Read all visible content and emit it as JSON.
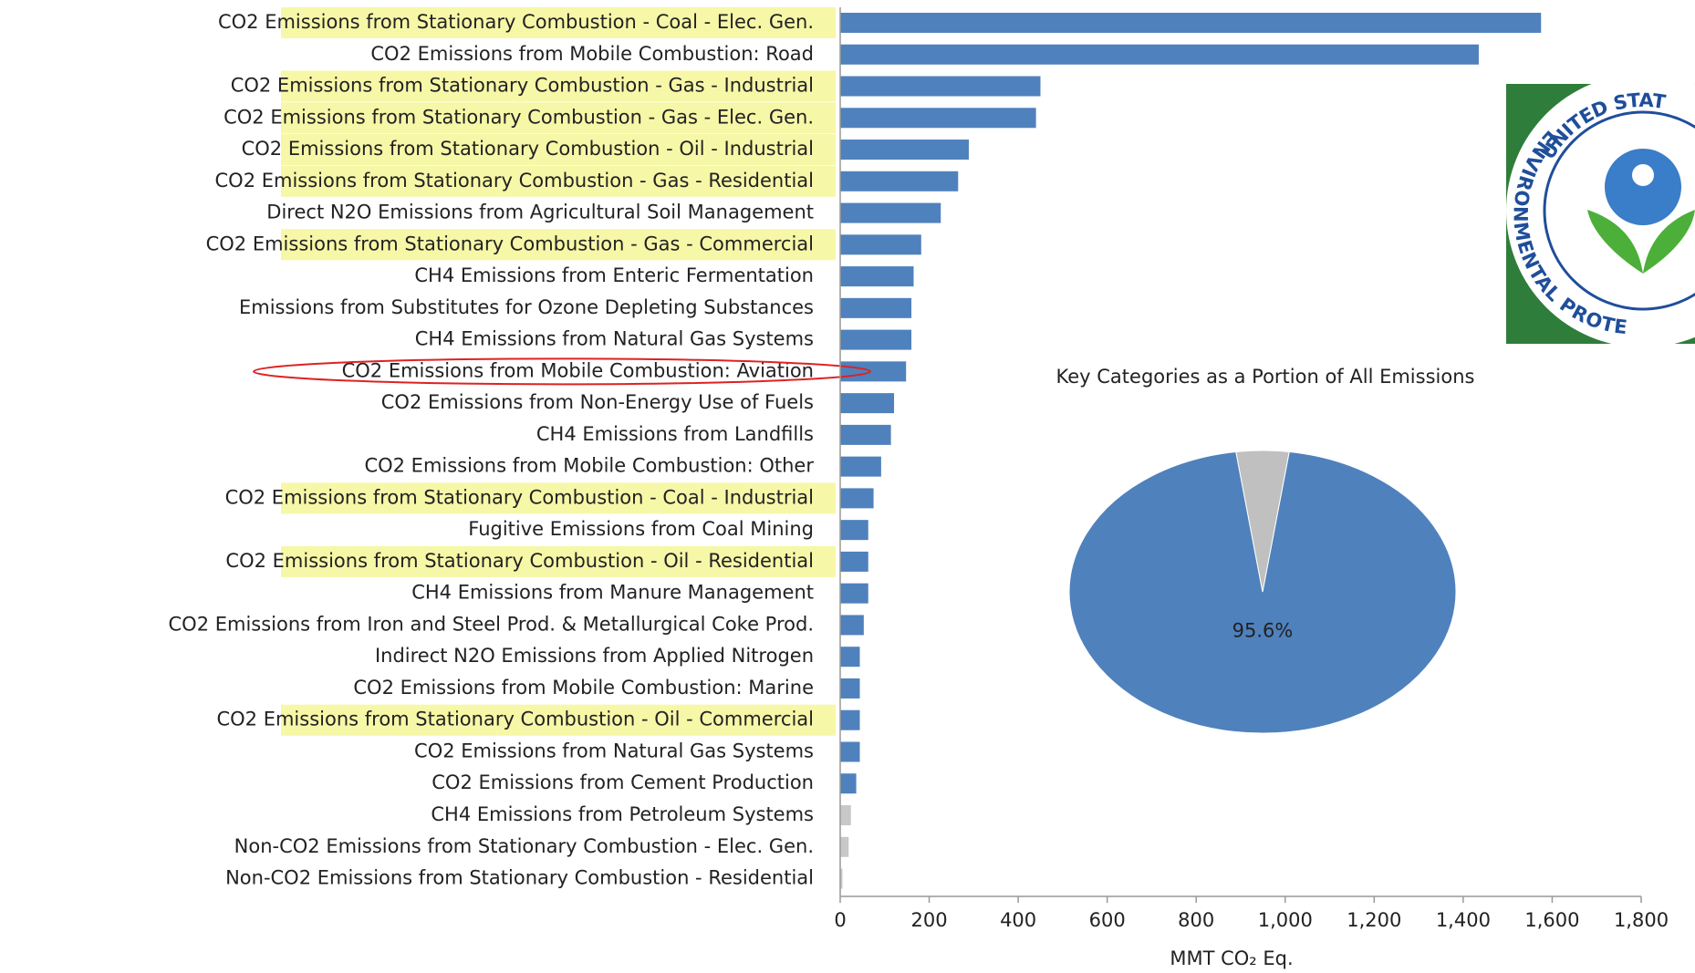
{
  "chart_data": [
    {
      "type": "bar",
      "categories": [
        "CO2 Emissions from Stationary Combustion - Coal - Elec. Gen.",
        "CO2 Emissions from Mobile Combustion: Road",
        "CO2 Emissions from Stationary Combustion - Gas - Industrial",
        "CO2 Emissions from Stationary Combustion - Gas - Elec. Gen.",
        "CO2 Emissions from Stationary Combustion - Oil - Industrial",
        "CO2 Emissions from Stationary Combustion - Gas - Residential",
        "Direct N2O Emissions from Agricultural Soil Management",
        "CO2 Emissions from Stationary Combustion - Gas - Commercial",
        "CH4 Emissions from Enteric Fermentation",
        "Emissions from Substitutes for Ozone Depleting Substances",
        "CH4 Emissions from Natural Gas Systems",
        "CO2 Emissions from Mobile Combustion: Aviation",
        "CO2 Emissions from Non-Energy Use of Fuels",
        "CH4 Emissions from Landfills",
        "CO2 Emissions from Mobile Combustion: Other",
        "CO2 Emissions from Stationary Combustion - Coal - Industrial",
        "Fugitive Emissions from Coal Mining",
        "CO2 Emissions from Stationary Combustion - Oil - Residential",
        "CH4 Emissions from Manure Management",
        "CO2 Emissions from Iron and Steel Prod. & Metallurgical Coke Prod.",
        "Indirect N2O Emissions from Applied Nitrogen",
        "CO2 Emissions from Mobile Combustion: Marine",
        "CO2 Emissions from Stationary Combustion - Oil - Commercial",
        "CO2 Emissions from Natural Gas Systems",
        "CO2 Emissions from Cement Production",
        "CH4 Emissions from Petroleum Systems",
        "Non-CO2 Emissions from Stationary Combustion - Elec. Gen.",
        "Non-CO2 Emissions from Stationary Combustion - Residential"
      ],
      "values": [
        1575,
        1435,
        450,
        440,
        289,
        265,
        226,
        182,
        165,
        160,
        160,
        148,
        121,
        114,
        92,
        75,
        63,
        63,
        63,
        53,
        44,
        44,
        44,
        44,
        36,
        24,
        19,
        5
      ],
      "colors": [
        "#4f81bd",
        "#4f81bd",
        "#4f81bd",
        "#4f81bd",
        "#4f81bd",
        "#4f81bd",
        "#4f81bd",
        "#4f81bd",
        "#4f81bd",
        "#4f81bd",
        "#4f81bd",
        "#4f81bd",
        "#4f81bd",
        "#4f81bd",
        "#4f81bd",
        "#4f81bd",
        "#4f81bd",
        "#4f81bd",
        "#4f81bd",
        "#4f81bd",
        "#4f81bd",
        "#4f81bd",
        "#4f81bd",
        "#4f81bd",
        "#4f81bd",
        "#c8c8c8",
        "#c8c8c8",
        "#c8c8c8"
      ],
      "highlight": [
        0,
        2,
        3,
        4,
        5,
        7,
        15,
        17,
        22
      ],
      "circled": 11,
      "xlim": [
        0,
        1800
      ],
      "xticks": [
        0,
        200,
        400,
        600,
        800,
        {
          "value": 1000,
          "label": "1,000"
        },
        {
          "value": 1200,
          "label": "1,200"
        },
        {
          "value": 1400,
          "label": "1,400"
        },
        {
          "value": 1600,
          "label": "1,600"
        },
        {
          "value": 1800,
          "label": "1,800"
        }
      ],
      "xlabel": "MMT CO₂ Eq."
    },
    {
      "type": "pie",
      "title": "Key Categories as a Portion of All Emissions",
      "values": [
        95.6,
        4.4
      ],
      "value_labels": [
        "95.6%",
        null
      ],
      "colors": [
        "#4f81bd",
        "#c0c0c0"
      ]
    }
  ],
  "logo": {
    "top": "UNITED STAT",
    "ring": "ENVIRONMENTAL PROTE"
  }
}
